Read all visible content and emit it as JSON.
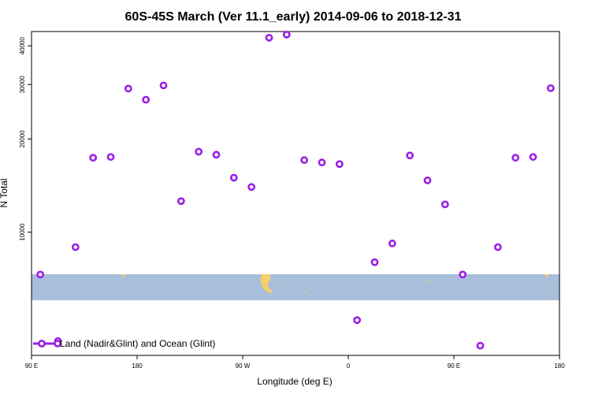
{
  "chart_data": {
    "type": "scatter",
    "title": "60S-45S March (Ver 11.1_early)   2014-09-06 to 2018-12-31",
    "xlabel": "Longitude (deg E)",
    "ylabel": "N Total",
    "x_ticks": [
      {
        "value": 90,
        "label": "90 E"
      },
      {
        "value": 180,
        "label": "180"
      },
      {
        "value": 270,
        "label": "90 W"
      },
      {
        "value": 360,
        "label": "0"
      },
      {
        "value": 450,
        "label": "90 E"
      },
      {
        "value": 540,
        "label": "180"
      }
    ],
    "y_ticks": [
      {
        "value": 10000,
        "label": "10000"
      },
      {
        "value": 20000,
        "label": "20000"
      },
      {
        "value": 30000,
        "label": "30000"
      },
      {
        "value": 40000,
        "label": "40000"
      }
    ],
    "xlim": [
      90,
      540
    ],
    "ylim": [
      4000,
      44500
    ],
    "y_scale": "log",
    "grid": false,
    "legend": {
      "position": "bottom-left",
      "entries": [
        "Land (Nadir&Glint) and Ocean (Glint)"
      ]
    },
    "colors": {
      "series": "#9a1fe6",
      "ocean_band": "#a8bedb",
      "land": "#f5cf6a"
    },
    "series": [
      {
        "name": "Land (Nadir&Glint) and Ocean (Glint)",
        "x": [
          97.5,
          112.5,
          127.5,
          142.5,
          157.5,
          172.5,
          187.5,
          202.5,
          217.5,
          232.5,
          247.5,
          262.5,
          277.5,
          292.5,
          307.5,
          322.5,
          337.5,
          352.5,
          367.5,
          382.5,
          397.5,
          412.5,
          427.5,
          442.5,
          457.5,
          472.5,
          487.5,
          502.5,
          517.5,
          532.5
        ],
        "y": [
          7300,
          4450,
          8950,
          17400,
          17500,
          29100,
          26800,
          29800,
          12600,
          18200,
          17800,
          15000,
          14000,
          42500,
          43500,
          17100,
          16800,
          16600,
          5200,
          8000,
          9200,
          17700,
          14700,
          12300,
          7300,
          4300,
          8950,
          17400,
          17500,
          29200
        ]
      }
    ]
  }
}
